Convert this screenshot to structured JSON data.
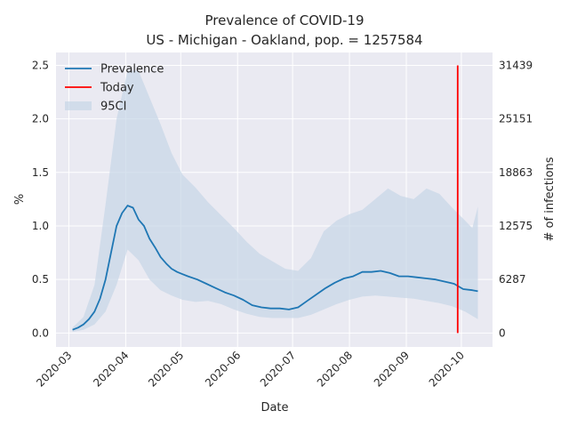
{
  "chart_data": {
    "type": "line",
    "title": "Prevalence of COVID-19",
    "subtitle": "US - Michigan - Oakland, pop. = 1257584",
    "xlabel": "Date",
    "ylabel": "%",
    "y2label": "# of infections",
    "ylim": [
      -0.13,
      2.62
    ],
    "xlim": [
      "2020-02-23",
      "2020-10-18"
    ],
    "grid": true,
    "legend_position": "top-left",
    "x_ticks": [
      "2020-03",
      "2020-04",
      "2020-05",
      "2020-06",
      "2020-07",
      "2020-08",
      "2020-09",
      "2020-10"
    ],
    "y_ticks": [
      0.0,
      0.5,
      1.0,
      1.5,
      2.0,
      2.5
    ],
    "y_tick_labels": [
      "0.0",
      "0.5",
      "1.0",
      "1.5",
      "2.0",
      "2.5"
    ],
    "y2_tick_labels": [
      "0",
      "6287",
      "12575",
      "18863",
      "25151",
      "31439"
    ],
    "today": "2020-09-29",
    "today_range": [
      0.0,
      2.5
    ],
    "colors": {
      "prevalence": "#1f77b4",
      "today": "#ff0000",
      "ci": "#c6d6e7",
      "plot_bg": "#eaeaf2",
      "grid": "#ffffff"
    },
    "series": [
      {
        "name": "Prevalence",
        "x": [
          "2020-03-03",
          "2020-03-06",
          "2020-03-09",
          "2020-03-12",
          "2020-03-15",
          "2020-03-18",
          "2020-03-21",
          "2020-03-24",
          "2020-03-27",
          "2020-03-30",
          "2020-04-02",
          "2020-04-05",
          "2020-04-08",
          "2020-04-11",
          "2020-04-14",
          "2020-04-17",
          "2020-04-20",
          "2020-04-23",
          "2020-04-26",
          "2020-04-29",
          "2020-05-02",
          "2020-05-05",
          "2020-05-10",
          "2020-05-15",
          "2020-05-20",
          "2020-05-25",
          "2020-05-30",
          "2020-06-04",
          "2020-06-09",
          "2020-06-14",
          "2020-06-19",
          "2020-06-24",
          "2020-06-29",
          "2020-07-04",
          "2020-07-09",
          "2020-07-14",
          "2020-07-19",
          "2020-07-24",
          "2020-07-29",
          "2020-08-03",
          "2020-08-08",
          "2020-08-13",
          "2020-08-18",
          "2020-08-23",
          "2020-08-28",
          "2020-09-02",
          "2020-09-07",
          "2020-09-12",
          "2020-09-17",
          "2020-09-22",
          "2020-09-27",
          "2020-10-02",
          "2020-10-07",
          "2020-10-10"
        ],
        "values": [
          0.03,
          0.05,
          0.08,
          0.13,
          0.2,
          0.32,
          0.5,
          0.75,
          1.0,
          1.12,
          1.19,
          1.17,
          1.06,
          1.0,
          0.88,
          0.8,
          0.71,
          0.65,
          0.6,
          0.57,
          0.55,
          0.53,
          0.5,
          0.46,
          0.42,
          0.38,
          0.35,
          0.31,
          0.26,
          0.24,
          0.23,
          0.23,
          0.22,
          0.24,
          0.3,
          0.36,
          0.42,
          0.47,
          0.51,
          0.53,
          0.57,
          0.57,
          0.58,
          0.56,
          0.53,
          0.53,
          0.52,
          0.51,
          0.5,
          0.48,
          0.46,
          0.41,
          0.4,
          0.39
        ]
      },
      {
        "name": "95CI",
        "x": [
          "2020-03-03",
          "2020-03-09",
          "2020-03-15",
          "2020-03-21",
          "2020-03-27",
          "2020-04-02",
          "2020-04-08",
          "2020-04-14",
          "2020-04-20",
          "2020-04-26",
          "2020-05-02",
          "2020-05-09",
          "2020-05-16",
          "2020-05-23",
          "2020-05-30",
          "2020-06-06",
          "2020-06-13",
          "2020-06-20",
          "2020-06-27",
          "2020-07-04",
          "2020-07-11",
          "2020-07-18",
          "2020-07-25",
          "2020-08-01",
          "2020-08-08",
          "2020-08-15",
          "2020-08-22",
          "2020-08-29",
          "2020-09-05",
          "2020-09-12",
          "2020-09-19",
          "2020-09-26",
          "2020-10-03",
          "2020-10-07",
          "2020-10-10"
        ],
        "lower": [
          0.01,
          0.03,
          0.08,
          0.2,
          0.45,
          0.78,
          0.68,
          0.5,
          0.4,
          0.35,
          0.31,
          0.29,
          0.3,
          0.27,
          0.22,
          0.18,
          0.15,
          0.14,
          0.14,
          0.14,
          0.17,
          0.22,
          0.27,
          0.31,
          0.34,
          0.35,
          0.34,
          0.33,
          0.32,
          0.3,
          0.28,
          0.25,
          0.2,
          0.16,
          0.13
        ],
        "upper": [
          0.05,
          0.15,
          0.45,
          1.2,
          2.0,
          2.45,
          2.45,
          2.2,
          1.95,
          1.68,
          1.48,
          1.36,
          1.22,
          1.1,
          0.98,
          0.85,
          0.74,
          0.67,
          0.6,
          0.58,
          0.7,
          0.95,
          1.05,
          1.11,
          1.15,
          1.25,
          1.35,
          1.28,
          1.25,
          1.35,
          1.3,
          1.17,
          1.05,
          0.98,
          1.18
        ]
      }
    ],
    "legend": [
      {
        "label": "Prevalence",
        "kind": "line",
        "color": "#1f77b4"
      },
      {
        "label": "Today",
        "kind": "line",
        "color": "#ff0000"
      },
      {
        "label": "95CI",
        "kind": "patch",
        "color": "#c6d6e7"
      }
    ]
  }
}
